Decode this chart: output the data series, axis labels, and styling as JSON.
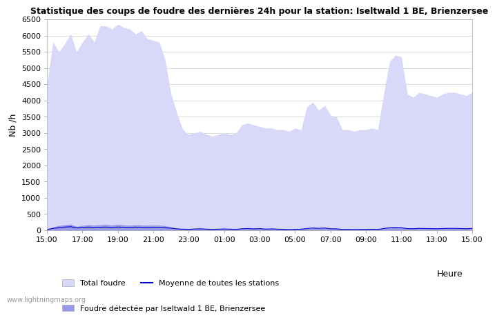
{
  "title": "Statistique des coups de foudre des dernières 24h pour la station: Iseltwald 1 BE, Brienzersee",
  "ylabel": "Nb /h",
  "xlabel": "Heure",
  "ylim": [
    0,
    6500
  ],
  "yticks": [
    0,
    500,
    1000,
    1500,
    2000,
    2500,
    3000,
    3500,
    4000,
    4500,
    5000,
    5500,
    6000,
    6500
  ],
  "xtick_labels": [
    "15:00",
    "17:00",
    "19:00",
    "21:00",
    "23:00",
    "01:00",
    "03:00",
    "05:00",
    "07:00",
    "09:00",
    "11:00",
    "13:00",
    "15:00"
  ],
  "fill_color_total": "#d8d8f8",
  "fill_color_detected": "#9898e8",
  "line_color_moyenne": "#0000cc",
  "background_color": "#ffffff",
  "grid_color": "#cccccc",
  "watermark": "www.lightningmaps.org",
  "legend_total": "Total foudre",
  "legend_moyenne": "Moyenne de toutes les stations",
  "legend_detected": "Foudre détectée par Iseltwald 1 BE, Brienzersee",
  "total_foudre": [
    4500,
    5800,
    5500,
    5750,
    6050,
    5500,
    5800,
    6050,
    5800,
    6300,
    6300,
    6200,
    6350,
    6250,
    6200,
    6050,
    6150,
    5900,
    5850,
    5800,
    5250,
    4200,
    3600,
    3100,
    2950,
    3000,
    3050,
    2950,
    2900,
    2950,
    3000,
    2950,
    3000,
    3250,
    3300,
    3250,
    3200,
    3150,
    3150,
    3100,
    3100,
    3050,
    3150,
    3100,
    3800,
    3950,
    3700,
    3850,
    3550,
    3500,
    3100,
    3100,
    3050,
    3100,
    3100,
    3150,
    3100,
    4200,
    5200,
    5400,
    5350,
    4200,
    4100,
    4250,
    4200,
    4150,
    4100,
    4200,
    4250,
    4250,
    4200,
    4150,
    4250
  ],
  "detected_foudre": [
    20,
    100,
    150,
    170,
    190,
    120,
    150,
    170,
    160,
    170,
    180,
    160,
    180,
    165,
    155,
    170,
    160,
    155,
    160,
    160,
    140,
    110,
    60,
    40,
    30,
    50,
    60,
    40,
    30,
    40,
    50,
    40,
    30,
    60,
    70,
    55,
    65,
    45,
    55,
    40,
    35,
    25,
    35,
    40,
    70,
    90,
    75,
    90,
    60,
    55,
    35,
    35,
    30,
    35,
    35,
    40,
    35,
    70,
    100,
    110,
    100,
    65,
    60,
    75,
    70,
    65,
    60,
    70,
    75,
    75,
    70,
    60,
    75
  ],
  "moyenne_foudre": [
    20,
    60,
    80,
    100,
    110,
    80,
    90,
    100,
    90,
    95,
    100,
    90,
    100,
    92,
    88,
    98,
    90,
    88,
    92,
    90,
    80,
    65,
    45,
    35,
    28,
    40,
    48,
    35,
    28,
    35,
    42,
    35,
    28,
    48,
    55,
    45,
    52,
    38,
    45,
    35,
    30,
    25,
    30,
    35,
    55,
    72,
    60,
    72,
    48,
    45,
    28,
    28,
    25,
    28,
    28,
    32,
    28,
    55,
    80,
    88,
    80,
    52,
    48,
    60,
    55,
    52,
    48,
    55,
    60,
    60,
    55,
    48,
    60
  ],
  "n_points": 73
}
